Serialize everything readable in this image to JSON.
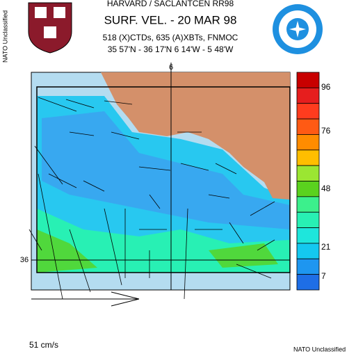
{
  "header": {
    "line1": "HARVARD / SACLANTCEN RR98",
    "title": "SURF. VEL. - 20 MAR 98",
    "line3": "518 (X)CTDs, 635 (A)XBTs, FNMOC",
    "line4": "35 57'N - 36 17'N  6 14'W - 5 48'W"
  },
  "map": {
    "lon_label": "6",
    "lat_label": "36",
    "scale_label": "51 cm/s"
  },
  "colorbar": {
    "colors": [
      "#c80000",
      "#e61e1e",
      "#ff3c1e",
      "#ff5a14",
      "#ff8c00",
      "#ffbe00",
      "#9be632",
      "#5ad21e",
      "#3cf08c",
      "#28f0b4",
      "#1ee6dc",
      "#14c8f0",
      "#1e96f0",
      "#1e6ee6"
    ],
    "labels": [
      "96",
      "76",
      "48",
      "21",
      "7"
    ]
  },
  "classification": {
    "side": "NATO Unclassified",
    "bottom": "NATO Unclassified"
  }
}
